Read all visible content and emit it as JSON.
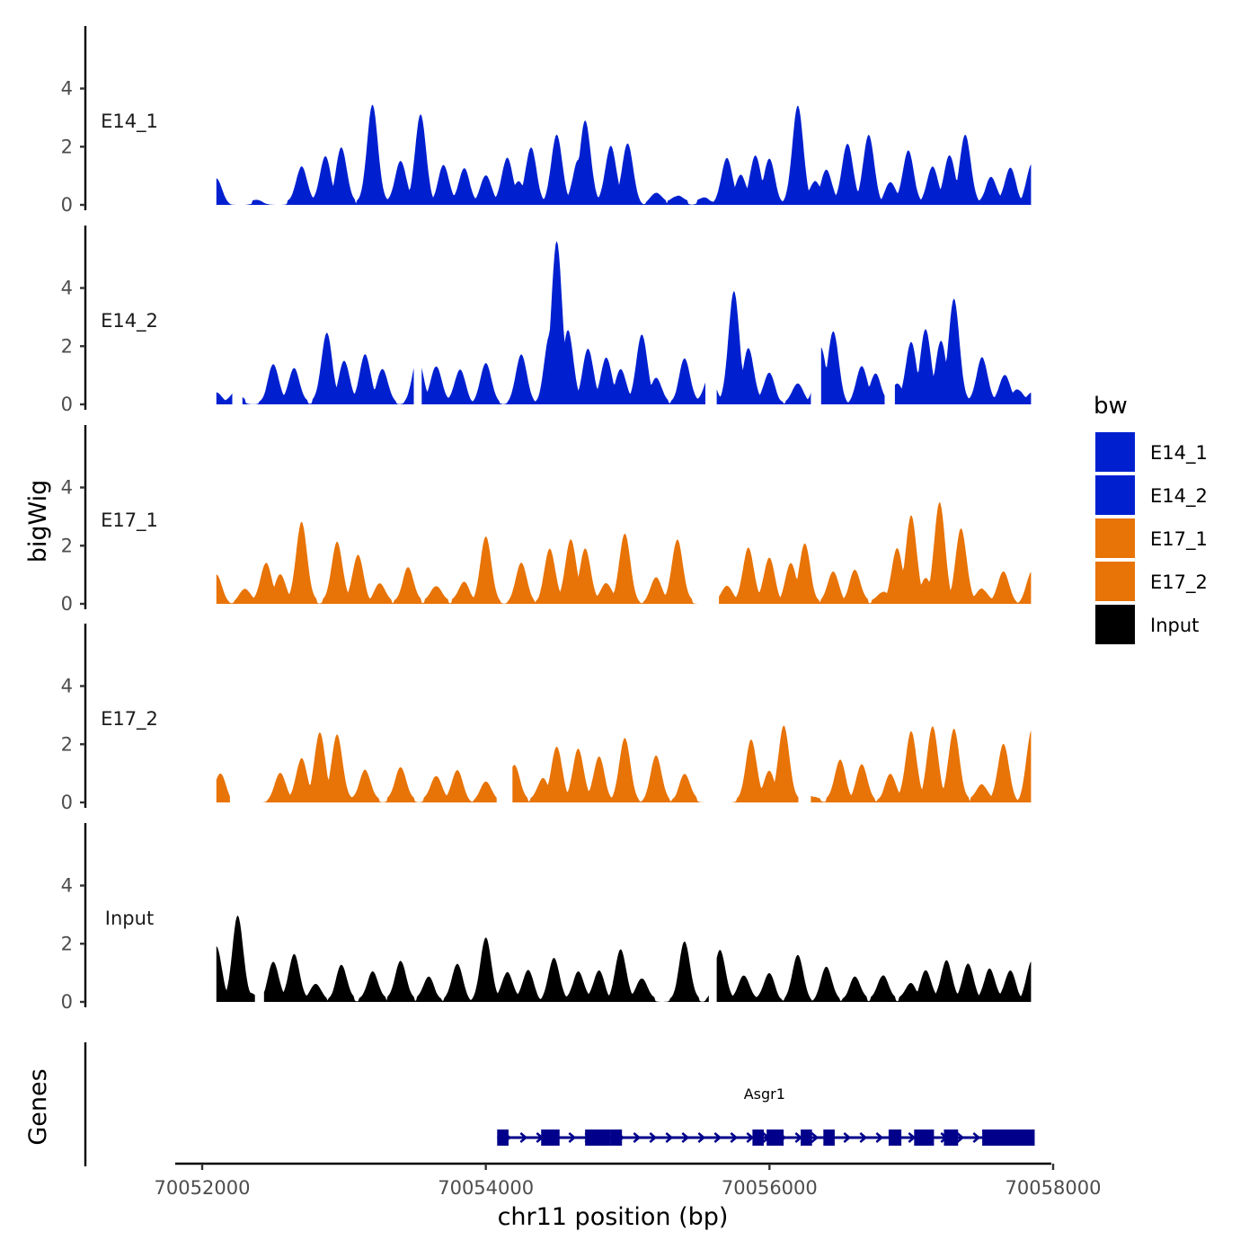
{
  "chart_data": {
    "type": "area",
    "chromosome": "chr11",
    "xlabel": "chr11 position (bp)",
    "ylabel": "bigWig",
    "genes_label": "Genes",
    "xlim": [
      70051800,
      70058000
    ],
    "ylim": [
      0,
      5.9
    ],
    "x_ticks": [
      70052000,
      70054000,
      70056000,
      70058000
    ],
    "x_tick_labels": [
      "70052000",
      "70054000",
      "70056000",
      "70058000"
    ],
    "y_ticks": [
      0,
      2,
      4
    ],
    "y_tick_labels": [
      "0",
      "2",
      "4"
    ],
    "legend": {
      "title": "bw",
      "position": "right",
      "entries": [
        {
          "label": "E14_1",
          "color": "#0020D0"
        },
        {
          "label": "E14_2",
          "color": "#0020D0"
        },
        {
          "label": "E17_1",
          "color": "#E87306"
        },
        {
          "label": "E17_2",
          "color": "#E87306"
        },
        {
          "label": "Input",
          "color": "#000000"
        }
      ]
    },
    "x_range": [
      70052100,
      70057850
    ],
    "tracks": [
      {
        "name": "E14_1",
        "color": "#0020D0",
        "x": [
          70052100,
          70052400,
          70052700,
          70052870,
          70052980,
          70053200,
          70053400,
          70053540,
          70053700,
          70053850,
          70054000,
          70054150,
          70054230,
          70054320,
          70054500,
          70054650,
          70054700,
          70054880,
          70055000,
          70055200,
          70055350,
          70055550,
          70055700,
          70055800,
          70055900,
          70056000,
          70056200,
          70056320,
          70056400,
          70056550,
          70056700,
          70056850,
          70056980,
          70057150,
          70057270,
          70057380,
          70057560,
          70057700,
          70057850
        ],
        "peaks": [
          0.8,
          0.1,
          1.3,
          1.6,
          1.9,
          3.4,
          1.5,
          3.0,
          1.3,
          1.2,
          0.9,
          1.6,
          0.7,
          1.9,
          2.3,
          1.5,
          2.8,
          2.0,
          2.0,
          0.3,
          0.3,
          0.2,
          1.5,
          1.0,
          1.6,
          1.5,
          3.3,
          0.8,
          1.1,
          2.1,
          2.3,
          0.7,
          1.8,
          1.2,
          1.7,
          2.3,
          0.9,
          1.2,
          1.3
        ],
        "gaps": [
          [
            70052260,
            70052300
          ]
        ]
      },
      {
        "name": "E14_2",
        "color": "#0020D0",
        "x": [
          70052100,
          70052230,
          70052500,
          70052650,
          70052880,
          70053000,
          70053150,
          70053270,
          70053520,
          70053650,
          70053820,
          70054000,
          70054250,
          70054450,
          70054500,
          70054580,
          70054720,
          70054850,
          70054950,
          70055100,
          70055200,
          70055400,
          70055580,
          70055750,
          70055850,
          70056000,
          70056200,
          70056360,
          70056450,
          70056650,
          70056750,
          70056900,
          70057000,
          70057100,
          70057210,
          70057300,
          70057500,
          70057660,
          70057750,
          70057850
        ],
        "peaks": [
          0.3,
          0.4,
          1.3,
          1.2,
          2.4,
          1.4,
          1.7,
          1.1,
          1.5,
          1.3,
          1.1,
          1.3,
          1.6,
          2.3,
          5.5,
          2.5,
          1.8,
          1.6,
          1.1,
          2.4,
          0.8,
          1.5,
          1.0,
          3.8,
          1.9,
          1.0,
          0.6,
          1.9,
          2.4,
          1.2,
          1.0,
          0.6,
          2.1,
          2.5,
          2.1,
          3.6,
          1.6,
          0.9,
          0.5,
          0.3
        ],
        "gaps": [
          [
            70052220,
            70052280
          ],
          [
            70053500,
            70053540
          ],
          [
            70055550,
            70055620
          ],
          [
            70056300,
            70056360
          ],
          [
            70056820,
            70056880
          ]
        ]
      },
      {
        "name": "E17_1",
        "color": "#E87306",
        "x": [
          70052100,
          70052300,
          70052450,
          70052550,
          70052700,
          70052950,
          70053100,
          70053250,
          70053450,
          70053650,
          70053850,
          70054000,
          70054250,
          70054450,
          70054600,
          70054700,
          70054850,
          70054980,
          70055200,
          70055350,
          70055700,
          70055850,
          70056000,
          70056150,
          70056250,
          70056450,
          70056600,
          70056800,
          70056900,
          70057000,
          70057100,
          70057200,
          70057350,
          70057500,
          70057650,
          70057850
        ],
        "peaks": [
          0.9,
          0.4,
          1.4,
          0.9,
          2.8,
          2.1,
          1.6,
          0.6,
          1.2,
          0.6,
          0.7,
          2.2,
          1.3,
          1.8,
          2.2,
          1.8,
          0.7,
          2.3,
          0.8,
          2.2,
          0.5,
          1.9,
          1.5,
          1.3,
          2.0,
          1.0,
          1.1,
          0.4,
          1.8,
          3.0,
          0.8,
          3.4,
          2.5,
          0.5,
          1.0,
          1.0
        ],
        "gaps": [
          [
            70055580,
            70055640
          ]
        ]
      },
      {
        "name": "E17_2",
        "color": "#E87306",
        "x": [
          70052130,
          70052550,
          70052700,
          70052830,
          70052950,
          70053150,
          70053400,
          70053650,
          70053800,
          70054000,
          70054200,
          70054400,
          70054500,
          70054650,
          70054800,
          70054980,
          70055200,
          70055400,
          70055870,
          70056000,
          70056100,
          70056300,
          70056500,
          70056650,
          70056850,
          70057000,
          70057150,
          70057300,
          70057500,
          70057650,
          70057850
        ],
        "peaks": [
          0.9,
          0.9,
          1.5,
          2.3,
          2.3,
          1.1,
          1.2,
          0.9,
          1.0,
          0.6,
          1.2,
          0.8,
          1.8,
          1.8,
          1.5,
          2.1,
          1.5,
          0.9,
          2.1,
          1.0,
          2.6,
          0.2,
          1.4,
          1.2,
          0.9,
          2.4,
          2.5,
          2.5,
          0.6,
          1.9,
          2.4
        ],
        "gaps": [
          [
            70052200,
            70052420
          ],
          [
            70054080,
            70054180
          ],
          [
            70055580,
            70055730
          ],
          [
            70056210,
            70056290
          ]
        ]
      },
      {
        "name": "Input",
        "color": "#000000",
        "x": [
          70052100,
          70052250,
          70052340,
          70052500,
          70052650,
          70052800,
          70052980,
          70053200,
          70053400,
          70053600,
          70053800,
          70054000,
          70054150,
          70054300,
          70054480,
          70054650,
          70054800,
          70054950,
          70055100,
          70055400,
          70055650,
          70055820,
          70056000,
          70056200,
          70056400,
          70056600,
          70056800,
          70057000,
          70057100,
          70057250,
          70057400,
          70057550,
          70057700,
          70057850
        ],
        "peaks": [
          1.8,
          2.9,
          0.2,
          1.3,
          1.6,
          0.5,
          1.2,
          1.0,
          1.4,
          0.8,
          1.2,
          2.1,
          1.0,
          1.0,
          1.4,
          1.0,
          1.0,
          1.7,
          0.8,
          2.0,
          1.7,
          0.9,
          0.9,
          1.5,
          1.1,
          0.8,
          0.9,
          0.6,
          1.0,
          1.4,
          1.2,
          1.1,
          1.0,
          1.3
        ],
        "gaps": [
          [
            70052380,
            70052430
          ],
          [
            70055580,
            70055620
          ]
        ]
      }
    ],
    "genes": [
      {
        "name": "Asgr1",
        "start": 70054080,
        "end": 70057850,
        "strand": "+",
        "color": "#00008B",
        "exons": [
          [
            70054080,
            70054160
          ],
          [
            70054390,
            70054520
          ],
          [
            70054700,
            70054880
          ],
          [
            70054880,
            70054960
          ],
          [
            70055880,
            70055960
          ],
          [
            70055980,
            70056100
          ],
          [
            70056220,
            70056300
          ],
          [
            70056380,
            70056460
          ],
          [
            70056840,
            70056930
          ],
          [
            70057020,
            70057160
          ],
          [
            70057230,
            70057330
          ],
          [
            70057500,
            70057870
          ]
        ]
      }
    ]
  }
}
